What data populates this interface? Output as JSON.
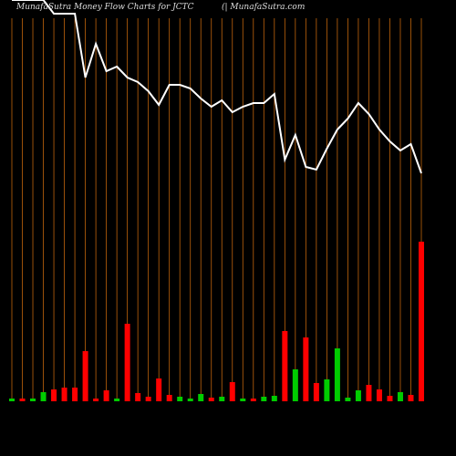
{
  "chart_data": {
    "type": "bar-line",
    "title": "MunafaSutra  Money Flow  Charts for JCTC",
    "subtitle": "(| MunafaSutra.com",
    "categories": [
      null,
      null,
      null,
      null,
      null,
      null,
      null,
      null,
      null,
      null,
      null,
      null,
      null,
      null,
      null,
      null,
      null,
      null,
      null,
      null,
      null,
      null,
      null,
      null,
      null,
      null,
      null,
      null,
      null,
      null,
      null,
      null,
      null,
      null,
      null,
      null,
      null,
      null,
      null,
      null
    ],
    "ylim": [
      0,
      440
    ],
    "grid_color": "#c0640c",
    "series": [
      {
        "type": "bar",
        "values": [
          3,
          3,
          3,
          10,
          13,
          15,
          15,
          55,
          3,
          12,
          3,
          85,
          9,
          5,
          25,
          7,
          5,
          3,
          8,
          4,
          5,
          21,
          3,
          3,
          5,
          6,
          77,
          35,
          70,
          20,
          24,
          58,
          4,
          12,
          18,
          13,
          6,
          10,
          7,
          175
        ],
        "colors": [
          "#00cc00",
          "#ff0000",
          "#00cc00",
          "#00cc00",
          "#ff0000",
          "#ff0000",
          "#ff0000",
          "#ff0000",
          "#ff0000",
          "#ff0000",
          "#00cc00",
          "#ff0000",
          "#ff0000",
          "#ff0000",
          "#ff0000",
          "#ff0000",
          "#00cc00",
          "#00cc00",
          "#00cc00",
          "#ff0000",
          "#00cc00",
          "#ff0000",
          "#00cc00",
          "#ff0000",
          "#00cc00",
          "#00cc00",
          "#ff0000",
          "#00cc00",
          "#ff0000",
          "#ff0000",
          "#00cc00",
          "#00cc00",
          "#00cc00",
          "#00cc00",
          "#ff0000",
          "#ff0000",
          "#ff0000",
          "#00cc00",
          "#ff0000",
          "#ff0000"
        ]
      },
      {
        "type": "line",
        "color": "#ffffff",
        "values": [
          440,
          440,
          440,
          440,
          425,
          425,
          425,
          355,
          392,
          362,
          367,
          355,
          350,
          340,
          325,
          347,
          347,
          343,
          332,
          323,
          330,
          317,
          323,
          327,
          327,
          337,
          265,
          292,
          257,
          254,
          277,
          298,
          310,
          327,
          315,
          298,
          285,
          275,
          282,
          250
        ]
      }
    ]
  }
}
